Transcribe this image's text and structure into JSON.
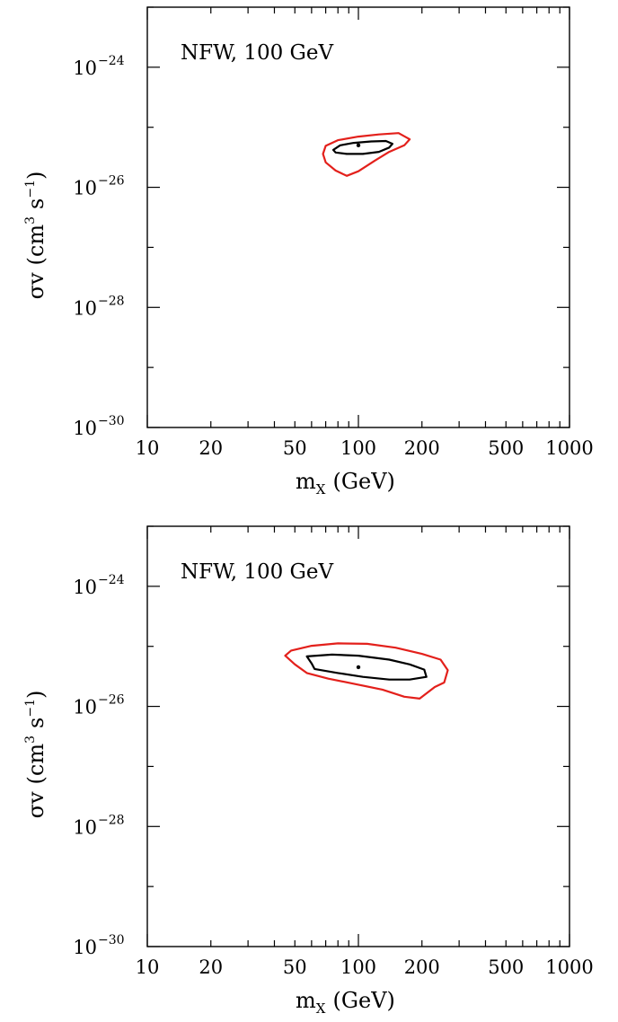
{
  "colors": {
    "inner_contour": "#000000",
    "outer_contour": "#e3201b",
    "best_fit": "#000000"
  },
  "chart_data": [
    {
      "type": "scatter",
      "annotation": "NFW, 100 GeV",
      "xlabel_main": "m",
      "xlabel_sub": "X",
      "xlabel_unit": "(GeV)",
      "ylabel_parts": {
        "sym": "σv",
        "open": "(cm",
        "exp1": "3",
        "mid": "s",
        "exp2": "−1",
        "close": ")"
      },
      "xscale": "log",
      "yscale": "log",
      "xlim": [
        10,
        1000
      ],
      "ylim": [
        1e-30,
        1e-23
      ],
      "xticks": [
        10,
        20,
        50,
        100,
        200,
        500,
        1000
      ],
      "xtick_labels": [
        "10",
        "20",
        "50",
        "100",
        "200",
        "500",
        "1000"
      ],
      "yticks": [
        1e-30,
        1e-28,
        1e-26,
        1e-24
      ],
      "ytick_base": "10",
      "ytick_exps": [
        "−30",
        "−28",
        "−26",
        "−24"
      ],
      "best_fit": {
        "x": 100,
        "y": 5e-26
      },
      "series": [
        {
          "role": "inner",
          "color": "#000000",
          "points": [
            [
              76,
              4.2e-26
            ],
            [
              82,
              5e-26
            ],
            [
              95,
              5.5e-26
            ],
            [
              115,
              5.8e-26
            ],
            [
              135,
              5.9e-26
            ],
            [
              145,
              5.3e-26
            ],
            [
              140,
              4.6e-26
            ],
            [
              125,
              3.9e-26
            ],
            [
              105,
              3.6e-26
            ],
            [
              88,
              3.6e-26
            ],
            [
              78,
              3.8e-26
            ]
          ]
        },
        {
          "role": "outer",
          "color": "#e3201b",
          "points": [
            [
              68,
              3.6e-26
            ],
            [
              70,
              4.9e-26
            ],
            [
              80,
              6.1e-26
            ],
            [
              100,
              7e-26
            ],
            [
              125,
              7.6e-26
            ],
            [
              155,
              8e-26
            ],
            [
              175,
              6.3e-26
            ],
            [
              165,
              5e-26
            ],
            [
              140,
              3.9e-26
            ],
            [
              120,
              2.8e-26
            ],
            [
              100,
              1.85e-26
            ],
            [
              88,
              1.55e-26
            ],
            [
              78,
              1.9e-26
            ],
            [
              70,
              2.6e-26
            ]
          ]
        }
      ]
    },
    {
      "type": "scatter",
      "annotation": "NFW, 100 GeV",
      "xlabel_main": "m",
      "xlabel_sub": "X",
      "xlabel_unit": "(GeV)",
      "ylabel_parts": {
        "sym": "σv",
        "open": "(cm",
        "exp1": "3",
        "mid": "s",
        "exp2": "−1",
        "close": ")"
      },
      "xscale": "log",
      "yscale": "log",
      "xlim": [
        10,
        1000
      ],
      "ylim": [
        1e-30,
        1e-23
      ],
      "xticks": [
        10,
        20,
        50,
        100,
        200,
        500,
        1000
      ],
      "xtick_labels": [
        "10",
        "20",
        "50",
        "100",
        "200",
        "500",
        "1000"
      ],
      "yticks": [
        1e-30,
        1e-28,
        1e-26,
        1e-24
      ],
      "ytick_base": "10",
      "ytick_exps": [
        "−30",
        "−28",
        "−26",
        "−24"
      ],
      "best_fit": {
        "x": 100,
        "y": 4.5e-26
      },
      "series": [
        {
          "role": "inner",
          "color": "#000000",
          "points": [
            [
              57,
              6.8e-26
            ],
            [
              75,
              7.3e-26
            ],
            [
              100,
              7e-26
            ],
            [
              140,
              6e-26
            ],
            [
              175,
              5e-26
            ],
            [
              205,
              4.1e-26
            ],
            [
              210,
              3.1e-26
            ],
            [
              175,
              2.8e-26
            ],
            [
              140,
              2.8e-26
            ],
            [
              105,
              3.1e-26
            ],
            [
              80,
              3.6e-26
            ],
            [
              62,
              4.2e-26
            ],
            [
              60,
              5.2e-26
            ]
          ]
        },
        {
          "role": "outer",
          "color": "#e3201b",
          "points": [
            [
              48,
              8.5e-26
            ],
            [
              60,
              1.02e-25
            ],
            [
              80,
              1.12e-25
            ],
            [
              110,
              1.1e-25
            ],
            [
              150,
              9.5e-26
            ],
            [
              200,
              7.5e-26
            ],
            [
              245,
              6e-26
            ],
            [
              265,
              4e-26
            ],
            [
              255,
              2.5e-26
            ],
            [
              230,
              2.1e-26
            ],
            [
              195,
              1.35e-26
            ],
            [
              165,
              1.45e-26
            ],
            [
              130,
              1.9e-26
            ],
            [
              100,
              2.3e-26
            ],
            [
              72,
              2.9e-26
            ],
            [
              57,
              3.6e-26
            ],
            [
              50,
              5e-26
            ],
            [
              45,
              7e-26
            ]
          ]
        }
      ]
    }
  ]
}
